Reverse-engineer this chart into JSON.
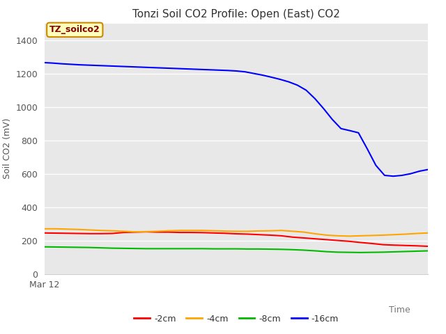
{
  "title": "Tonzi Soil CO2 Profile: Open (East) CO2",
  "ylabel": "Soil CO2 (mV)",
  "xlabel": "Time",
  "x_start_label": "Mar 12",
  "legend_label": "TZ_soilco2",
  "ylim": [
    0,
    1500
  ],
  "yticks": [
    0,
    200,
    400,
    600,
    800,
    1000,
    1200,
    1400
  ],
  "plot_bg_color": "#e8e8e8",
  "fig_bg_color": "#ffffff",
  "grid_color": "#ffffff",
  "series": {
    "-2cm": {
      "color": "#ff0000",
      "values": [
        245,
        244,
        243,
        242,
        241,
        241,
        242,
        248,
        250,
        252,
        250,
        250,
        248,
        248,
        247,
        245,
        243,
        240,
        238,
        235,
        232,
        228,
        220,
        215,
        210,
        205,
        200,
        195,
        188,
        182,
        175,
        172,
        170,
        168,
        165
      ]
    },
    "-4cm": {
      "color": "#ffa500",
      "values": [
        270,
        270,
        268,
        266,
        263,
        260,
        258,
        255,
        252,
        253,
        255,
        258,
        260,
        260,
        260,
        258,
        256,
        255,
        255,
        257,
        258,
        260,
        255,
        250,
        240,
        232,
        228,
        226,
        228,
        230,
        232,
        235,
        238,
        242,
        245
      ]
    },
    "-8cm": {
      "color": "#00bb00",
      "values": [
        162,
        161,
        160,
        159,
        158,
        156,
        154,
        153,
        152,
        151,
        151,
        151,
        151,
        151,
        151,
        150,
        150,
        150,
        149,
        149,
        148,
        147,
        145,
        142,
        138,
        133,
        130,
        129,
        128,
        129,
        130,
        132,
        134,
        136,
        138
      ]
    },
    "-16cm": {
      "color": "#0000ff",
      "values": [
        1265,
        1262,
        1258,
        1255,
        1252,
        1250,
        1248,
        1246,
        1244,
        1242,
        1240,
        1238,
        1236,
        1234,
        1232,
        1230,
        1228,
        1226,
        1224,
        1222,
        1220,
        1218,
        1215,
        1210,
        1200,
        1190,
        1178,
        1165,
        1150,
        1130,
        1100,
        1050,
        990,
        925,
        870,
        858,
        845,
        750,
        650,
        590,
        585,
        590,
        600,
        615,
        625
      ]
    }
  },
  "n_points_short": 35,
  "n_points_long": 45,
  "title_fontsize": 11,
  "label_fontsize": 9,
  "tick_fontsize": 9,
  "legend_fontsize": 9
}
